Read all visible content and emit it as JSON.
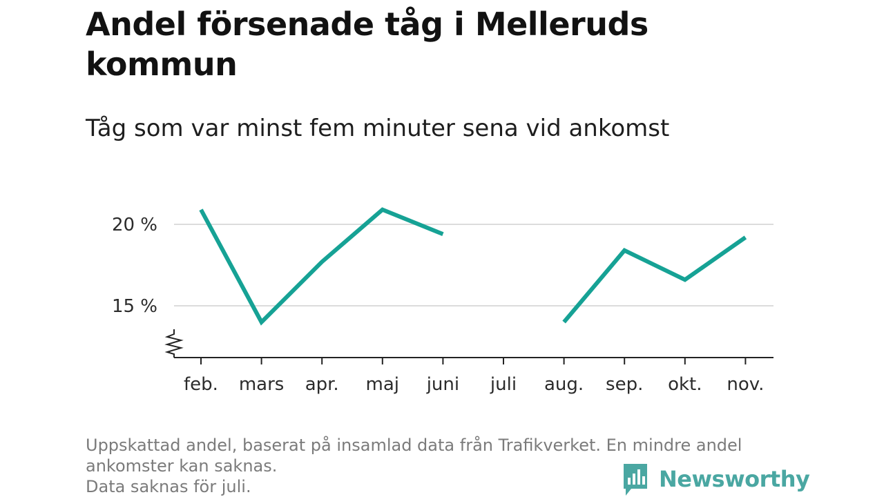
{
  "header": {
    "title": "Andel försenade tåg i Melleruds kommun",
    "subtitle": "Tåg som var minst fem minuter sena vid ankomst"
  },
  "chart_data": {
    "type": "line",
    "categories": [
      "feb.",
      "mars",
      "apr.",
      "maj",
      "juni",
      "juli",
      "aug.",
      "sep.",
      "okt.",
      "nov."
    ],
    "series": [
      {
        "values": [
          20.9,
          14.0,
          17.7,
          20.9,
          19.4,
          null,
          14.0,
          18.4,
          16.6,
          19.2
        ]
      }
    ],
    "ylim": [
      12,
      22
    ],
    "yticks": [
      {
        "value": 15,
        "label": "15 %"
      },
      {
        "value": 20,
        "label": "20 %"
      }
    ],
    "y_axis_break": true,
    "grid": true,
    "line_color": "#16a295",
    "grid_color": "#dcdcdc"
  },
  "footer": {
    "note_line1": "Uppskattad andel, baserat på insamlad data från Trafikverket. En mindre andel",
    "note_line2": "ankomster kan saknas.",
    "note_line3": "Data saknas för juli.",
    "brand": "Newsworthy",
    "brand_icon": "bar-chart-speech-bubble-icon",
    "brand_color": "#4aa7a2"
  }
}
